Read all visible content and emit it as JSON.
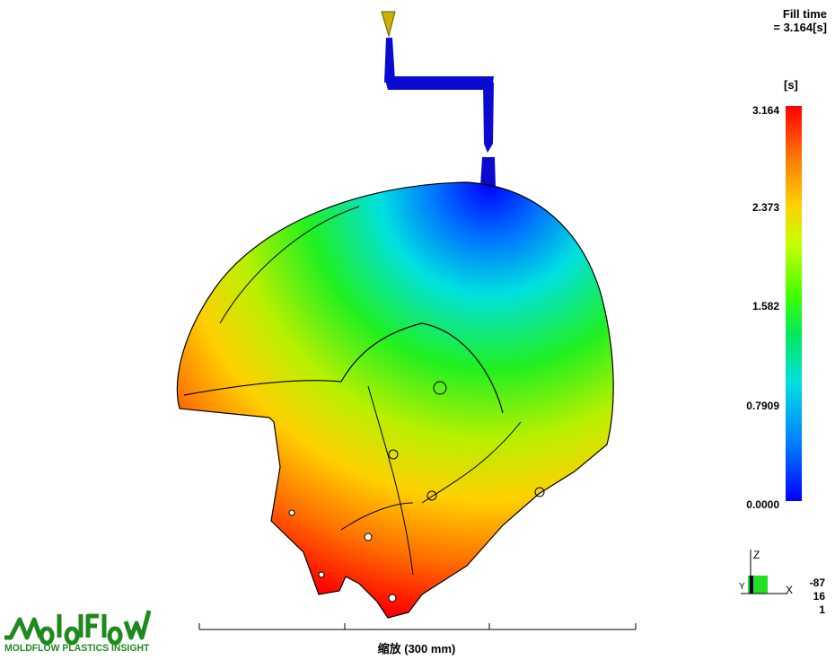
{
  "result": {
    "title_line1": "Fill time",
    "title_line2": "= 3.164[s]",
    "unit": "[s]",
    "legend_ticks": [
      "3.164",
      "2.373",
      "1.582",
      "0.7909",
      "0.0000"
    ],
    "legend_range": [
      0.0,
      3.164
    ],
    "colormap": [
      "#0000ff",
      "#00e0e0",
      "#40ff00",
      "#ffd000",
      "#ff0000"
    ]
  },
  "triad": {
    "axis_z": "Z",
    "axis_x": "X",
    "axis_y": "Y",
    "rotation": [
      "-87",
      "16",
      "1"
    ]
  },
  "scale_bar": {
    "label": "缩放 (300 mm)"
  },
  "logo": {
    "brand": "MoldFlow",
    "tagline": "MOLDFLOW PLASTICS INSIGHT",
    "color": "#1e8a1e"
  }
}
